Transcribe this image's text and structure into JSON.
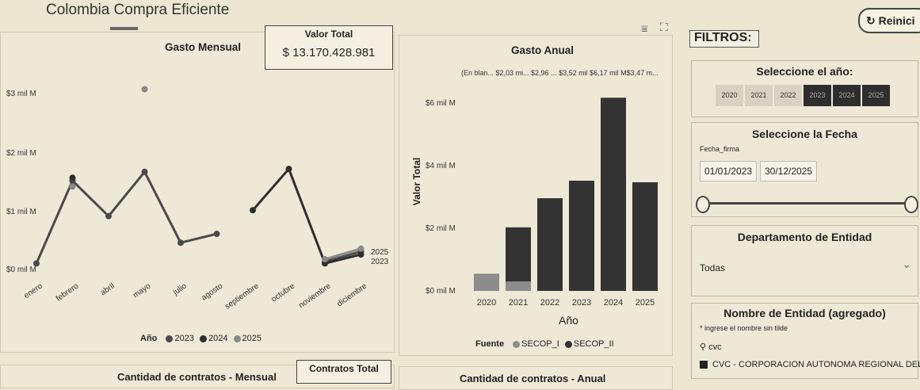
{
  "page": {
    "title": "Colombia Compra Eficiente"
  },
  "monthly": {
    "title": "Gasto Mensual",
    "y_ticks": [
      "$3 mil M",
      "$2 mil M",
      "$1 mil M",
      "$0 mil M"
    ],
    "x_labels": [
      "enero",
      "febrero",
      "abril",
      "mayo",
      "julio",
      "agosto",
      "septiembre",
      "octubre",
      "noviembre",
      "diciembre"
    ],
    "end_labels": [
      "2025",
      "2023"
    ],
    "legend_title": "Año",
    "legend": [
      "2023",
      "2024",
      "2025"
    ]
  },
  "total_value": {
    "label": "Valor Total",
    "value": "$ 13.170.428.981"
  },
  "annual": {
    "title": "Gasto Anual",
    "top_labels": "(En blan... $2,03 mi... $2,96 ... $3,52 mil $6,17 mil M$3,47 m...",
    "y_axis_label": "Valor Total",
    "y_ticks": [
      "$6 mil M",
      "$4 mil M",
      "$2 mil M",
      "$0 mil M"
    ],
    "x_axis_label": "Año",
    "legend_title": "Fuente",
    "legend": [
      "SECOP_I",
      "SECOP_II"
    ]
  },
  "filters": {
    "title": "FILTROS:",
    "reset_label": "Reinici",
    "year": {
      "title": "Seleccione el año:",
      "years": [
        "2020",
        "2021",
        "2022",
        "2023",
        "2024",
        "2025"
      ]
    },
    "date": {
      "title": "Seleccione la Fecha",
      "field_label": "Fecha_firma",
      "start": "01/01/2023",
      "end": "30/12/2025"
    },
    "department": {
      "title": "Departamento de Entidad",
      "value": "Todas"
    },
    "entity": {
      "title": "Nombre de Entidad (agregado)",
      "hint": "* ingrese el nombre sin tilde",
      "search_value": "cvc",
      "result": "CVC - CORPORACION AUTONOMA REGIONAL DEL"
    }
  },
  "bottom": {
    "contracts_total_label": "Contratos Total",
    "monthly_count_title": "Cantidad de contratos - Mensual",
    "annual_count_title": "Cantidad de contratos - Anual"
  },
  "colors": {
    "y2023": "#4a4a4a",
    "y2024": "#2e2e2e",
    "y2025": "#8a8a8a",
    "secop1": "#8c8c8c",
    "secop2": "#333333"
  },
  "chart_data": [
    {
      "type": "line",
      "title": "Gasto Mensual",
      "xlabel": "",
      "ylabel": "",
      "ylim": [
        0,
        3.3
      ],
      "unit": "mil M",
      "categories": [
        "enero",
        "febrero",
        "abril",
        "mayo",
        "julio",
        "agosto",
        "septiembre",
        "octubre",
        "noviembre",
        "diciembre"
      ],
      "series": [
        {
          "name": "2023",
          "values": [
            0.05,
            1.45,
            0.85,
            1.6,
            0.4,
            0.55,
            null,
            null,
            0.08,
            0.25
          ]
        },
        {
          "name": "2024",
          "values": [
            null,
            1.5,
            null,
            null,
            null,
            null,
            0.95,
            1.65,
            0.05,
            0.2
          ]
        },
        {
          "name": "2025",
          "values": [
            null,
            1.35,
            null,
            3.0,
            null,
            null,
            null,
            null,
            0.12,
            0.3
          ]
        }
      ]
    },
    {
      "type": "bar",
      "title": "Gasto Anual",
      "xlabel": "Año",
      "ylabel": "Valor Total",
      "ylim": [
        0,
        7
      ],
      "unit": "mil M",
      "categories": [
        "2020",
        "2021",
        "2022",
        "2023",
        "2024",
        "2025"
      ],
      "series": [
        {
          "name": "SECOP_I",
          "values": [
            0.55,
            0.3,
            0,
            0,
            0,
            0
          ]
        },
        {
          "name": "SECOP_II",
          "values": [
            0,
            1.73,
            2.96,
            3.52,
            6.17,
            3.47
          ]
        }
      ]
    }
  ]
}
